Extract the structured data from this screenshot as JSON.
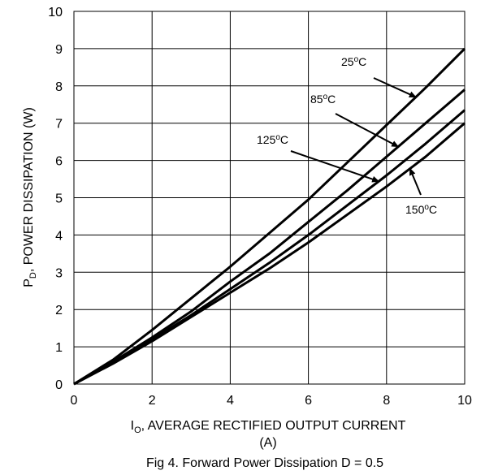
{
  "chart_data": {
    "type": "line",
    "xlim": [
      0,
      10
    ],
    "ylim": [
      0,
      10
    ],
    "x_ticks": [
      0,
      2,
      4,
      6,
      8,
      10
    ],
    "y_ticks": [
      0,
      1,
      2,
      3,
      4,
      5,
      6,
      7,
      8,
      9,
      10
    ],
    "grid": true,
    "xlabel_main": "I",
    "xlabel_sub": "O",
    "xlabel_rest": ", AVERAGE RECTIFIED OUTPUT CURRENT",
    "xlabel_unit": "(A)",
    "ylabel_main": "P",
    "ylabel_sub": "D",
    "ylabel_rest": ", POWER DISSIPATION (W)",
    "caption": "Fig 4. Forward Power Dissipation D = 0.5",
    "series": [
      {
        "name": "25°C",
        "label_base": "25",
        "label_sup": "o",
        "label_unit": "C",
        "x": [
          0,
          1,
          2,
          3,
          4,
          5,
          6,
          7,
          8,
          9,
          10
        ],
        "y": [
          0,
          0.65,
          1.45,
          2.3,
          3.15,
          4.05,
          4.95,
          5.95,
          6.95,
          7.95,
          9.0
        ]
      },
      {
        "name": "85°C",
        "label_base": "85",
        "label_sup": "o",
        "label_unit": "C",
        "x": [
          0,
          1,
          2,
          3,
          4,
          5,
          6,
          7,
          8,
          9,
          10
        ],
        "y": [
          0,
          0.6,
          1.25,
          1.95,
          2.75,
          3.5,
          4.35,
          5.2,
          6.1,
          7.0,
          7.9
        ]
      },
      {
        "name": "125°C",
        "label_base": "125",
        "label_sup": "o",
        "label_unit": "C",
        "x": [
          0,
          1,
          2,
          3,
          4,
          5,
          6,
          7,
          8,
          9,
          10
        ],
        "y": [
          0,
          0.58,
          1.2,
          1.85,
          2.55,
          3.25,
          4.0,
          4.8,
          5.6,
          6.45,
          7.35
        ]
      },
      {
        "name": "150°C",
        "label_base": "150",
        "label_sup": "o",
        "label_unit": "C",
        "x": [
          0,
          1,
          2,
          3,
          4,
          5,
          6,
          7,
          8,
          9,
          10
        ],
        "y": [
          0,
          0.55,
          1.15,
          1.8,
          2.45,
          3.1,
          3.8,
          4.55,
          5.3,
          6.1,
          7.0
        ]
      }
    ]
  }
}
